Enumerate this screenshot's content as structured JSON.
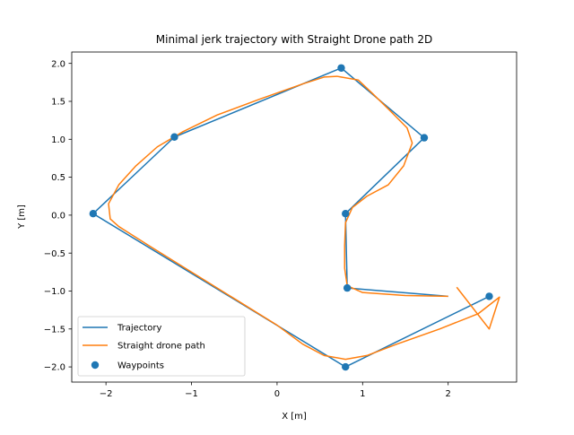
{
  "chart_data": {
    "type": "line",
    "title": "Minimal jerk trajectory with Straight Drone path 2D",
    "xlabel": "X [m]",
    "ylabel": "Y [m]",
    "xlim": [
      -2.4,
      2.8
    ],
    "ylim": [
      -2.2,
      2.15
    ],
    "x_ticks": [
      {
        "value": -2,
        "label": "−2"
      },
      {
        "value": -1,
        "label": "−1"
      },
      {
        "value": 0,
        "label": "0"
      },
      {
        "value": 1,
        "label": "1"
      },
      {
        "value": 2,
        "label": "2"
      }
    ],
    "y_ticks": [
      {
        "value": -2.0,
        "label": "−2.0"
      },
      {
        "value": -1.5,
        "label": "−1.5"
      },
      {
        "value": -1.0,
        "label": "−1.0"
      },
      {
        "value": -0.5,
        "label": "−0.5"
      },
      {
        "value": 0.0,
        "label": "0.0"
      },
      {
        "value": 0.5,
        "label": "0.5"
      },
      {
        "value": 1.0,
        "label": "1.0"
      },
      {
        "value": 1.5,
        "label": "1.5"
      },
      {
        "value": 2.0,
        "label": "2.0"
      }
    ],
    "grid": false,
    "legend_position": "lower-left",
    "series": [
      {
        "name": "Trajectory",
        "kind": "line",
        "color": "#1f77b4",
        "points": [
          [
            2.0,
            -1.07
          ],
          [
            0.82,
            -0.96
          ],
          [
            0.8,
            0.02
          ],
          [
            1.72,
            1.02
          ],
          [
            0.75,
            1.94
          ],
          [
            -1.2,
            1.03
          ],
          [
            -2.15,
            0.02
          ],
          [
            0.8,
            -2.0
          ],
          [
            2.48,
            -1.07
          ]
        ]
      },
      {
        "name": "Straight drone path",
        "kind": "line",
        "color": "#ff7f0e",
        "points": [
          [
            2.0,
            -1.07
          ],
          [
            1.5,
            -1.06
          ],
          [
            1.0,
            -1.02
          ],
          [
            0.82,
            -0.93
          ],
          [
            0.79,
            -0.7
          ],
          [
            0.79,
            -0.4
          ],
          [
            0.8,
            -0.1
          ],
          [
            0.88,
            0.1
          ],
          [
            1.05,
            0.25
          ],
          [
            1.3,
            0.4
          ],
          [
            1.48,
            0.65
          ],
          [
            1.58,
            0.95
          ],
          [
            1.52,
            1.15
          ],
          [
            1.3,
            1.4
          ],
          [
            1.1,
            1.62
          ],
          [
            0.95,
            1.78
          ],
          [
            0.7,
            1.83
          ],
          [
            0.55,
            1.82
          ],
          [
            0.3,
            1.73
          ],
          [
            -0.2,
            1.53
          ],
          [
            -0.7,
            1.32
          ],
          [
            -1.1,
            1.1
          ],
          [
            -1.4,
            0.9
          ],
          [
            -1.65,
            0.65
          ],
          [
            -1.85,
            0.4
          ],
          [
            -1.97,
            0.15
          ],
          [
            -1.95,
            -0.05
          ],
          [
            -1.85,
            -0.15
          ],
          [
            -1.5,
            -0.4
          ],
          [
            -1.0,
            -0.75
          ],
          [
            -0.5,
            -1.1
          ],
          [
            0.0,
            -1.45
          ],
          [
            0.3,
            -1.7
          ],
          [
            0.55,
            -1.85
          ],
          [
            0.8,
            -1.9
          ],
          [
            1.05,
            -1.85
          ],
          [
            1.4,
            -1.7
          ],
          [
            1.9,
            -1.5
          ],
          [
            2.35,
            -1.3
          ],
          [
            2.6,
            -1.08
          ],
          [
            2.48,
            -1.5
          ],
          [
            2.1,
            -0.95
          ]
        ]
      },
      {
        "name": "Waypoints",
        "kind": "scatter",
        "color": "#1f77b4",
        "points": [
          [
            0.82,
            -0.96
          ],
          [
            0.8,
            0.02
          ],
          [
            1.72,
            1.02
          ],
          [
            0.75,
            1.94
          ],
          [
            -1.2,
            1.03
          ],
          [
            -2.15,
            0.02
          ],
          [
            0.8,
            -2.0
          ],
          [
            2.48,
            -1.07
          ]
        ]
      }
    ]
  }
}
